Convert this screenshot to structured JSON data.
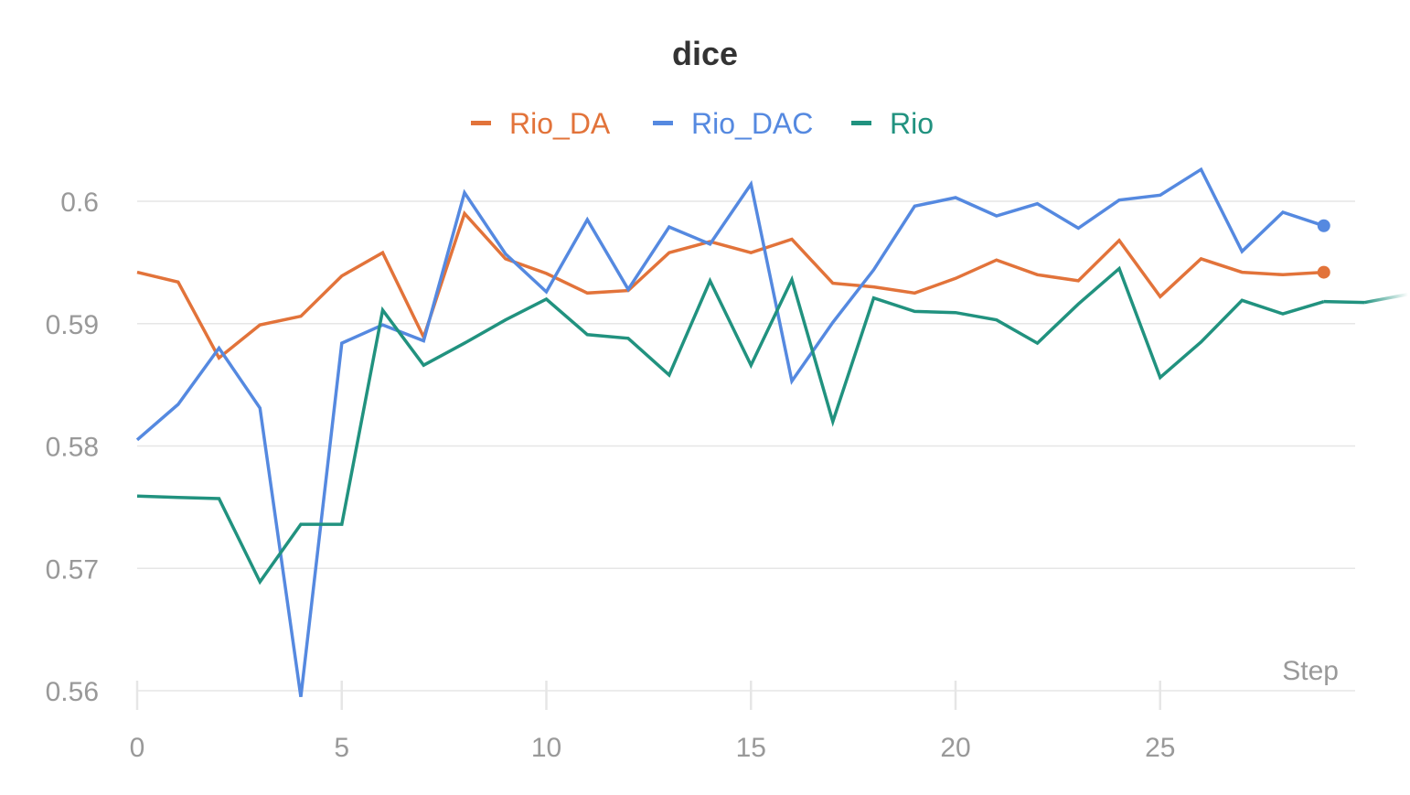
{
  "chart_data": {
    "type": "line",
    "title": "dice",
    "xlabel": "Step",
    "ylabel": "",
    "xlim": [
      0,
      29.8
    ],
    "ylim": [
      0.56,
      0.6035
    ],
    "xticks": [
      0,
      5,
      10,
      15,
      20,
      25
    ],
    "yticks": [
      0.56,
      0.57,
      0.58,
      0.59,
      0.6
    ],
    "ytick_labels": [
      "0.56",
      "0.57",
      "0.58",
      "0.59",
      "0.6"
    ],
    "grid": true,
    "legend_position": "top-center",
    "x": [
      0,
      1,
      2,
      3,
      4,
      5,
      6,
      7,
      8,
      9,
      10,
      11,
      12,
      13,
      14,
      15,
      16,
      17,
      18,
      19,
      20,
      21,
      22,
      23,
      24,
      25,
      26,
      27,
      28,
      29
    ],
    "series": [
      {
        "name": "Rio_DA",
        "color": "#e2733a",
        "end_marker": true,
        "values": [
          0.5942,
          0.5934,
          0.5872,
          0.5899,
          0.5906,
          0.5939,
          0.5958,
          0.5889,
          0.599,
          0.5953,
          0.5941,
          0.5925,
          0.5927,
          0.5958,
          0.5967,
          0.5958,
          0.5969,
          0.5933,
          0.593,
          0.5925,
          0.5937,
          0.5952,
          0.594,
          0.5935,
          0.5968,
          0.5922,
          0.5953,
          0.5942,
          0.594,
          0.5942
        ]
      },
      {
        "name": "Rio_DAC",
        "color": "#5589e0",
        "end_marker": true,
        "values": [
          0.5805,
          0.5834,
          0.588,
          0.5831,
          0.5595,
          0.5884,
          0.5899,
          0.5886,
          0.6007,
          0.5957,
          0.5926,
          0.5985,
          0.5928,
          0.5979,
          0.5965,
          0.6014,
          0.5853,
          0.5901,
          0.5944,
          0.5996,
          0.6003,
          0.5988,
          0.5998,
          0.5978,
          0.6001,
          0.6005,
          0.6026,
          0.5959,
          0.5991,
          0.598
        ]
      },
      {
        "name": "Rio",
        "color": "#21927f",
        "end_marker": false,
        "values": [
          0.5759,
          0.5758,
          0.5757,
          0.5689,
          0.5736,
          0.5736,
          0.5911,
          0.5866,
          0.5884,
          0.5903,
          0.592,
          0.5891,
          0.5888,
          0.5858,
          0.5935,
          0.5866,
          0.5936,
          0.582,
          0.5921,
          0.591,
          0.5909,
          0.5903,
          0.5884,
          0.5916,
          0.5945,
          0.5856,
          0.5885,
          0.5919,
          0.5908,
          0.5918
        ]
      }
    ]
  }
}
